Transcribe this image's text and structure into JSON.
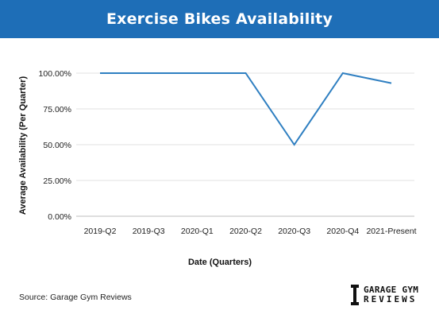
{
  "header": {
    "title": "Exercise Bikes Availability"
  },
  "footer": {
    "source": "Source: Garage Gym Reviews",
    "logo_line1": "GARAGE GYM",
    "logo_line2": "REVIEWS"
  },
  "chart_data": {
    "type": "line",
    "title": "Exercise Bikes Availability",
    "xlabel": "Date (Quarters)",
    "ylabel": "Average Availability (Per Quarter)",
    "categories": [
      "2019-Q2",
      "2019-Q3",
      "2020-Q1",
      "2020-Q2",
      "2020-Q3",
      "2020-Q4",
      "2021-Present"
    ],
    "series": [
      {
        "values": [
          100,
          100,
          100,
          100,
          50,
          100,
          93
        ]
      }
    ],
    "yticks": [
      "0.00%",
      "25.00%",
      "50.00%",
      "75.00%",
      "100.00%"
    ],
    "ytick_values": [
      0,
      25,
      50,
      75,
      100
    ],
    "ylim": [
      0,
      100
    ],
    "grid": true,
    "line_color": "#2f7fc1",
    "header_color": "#1e6eb7"
  }
}
